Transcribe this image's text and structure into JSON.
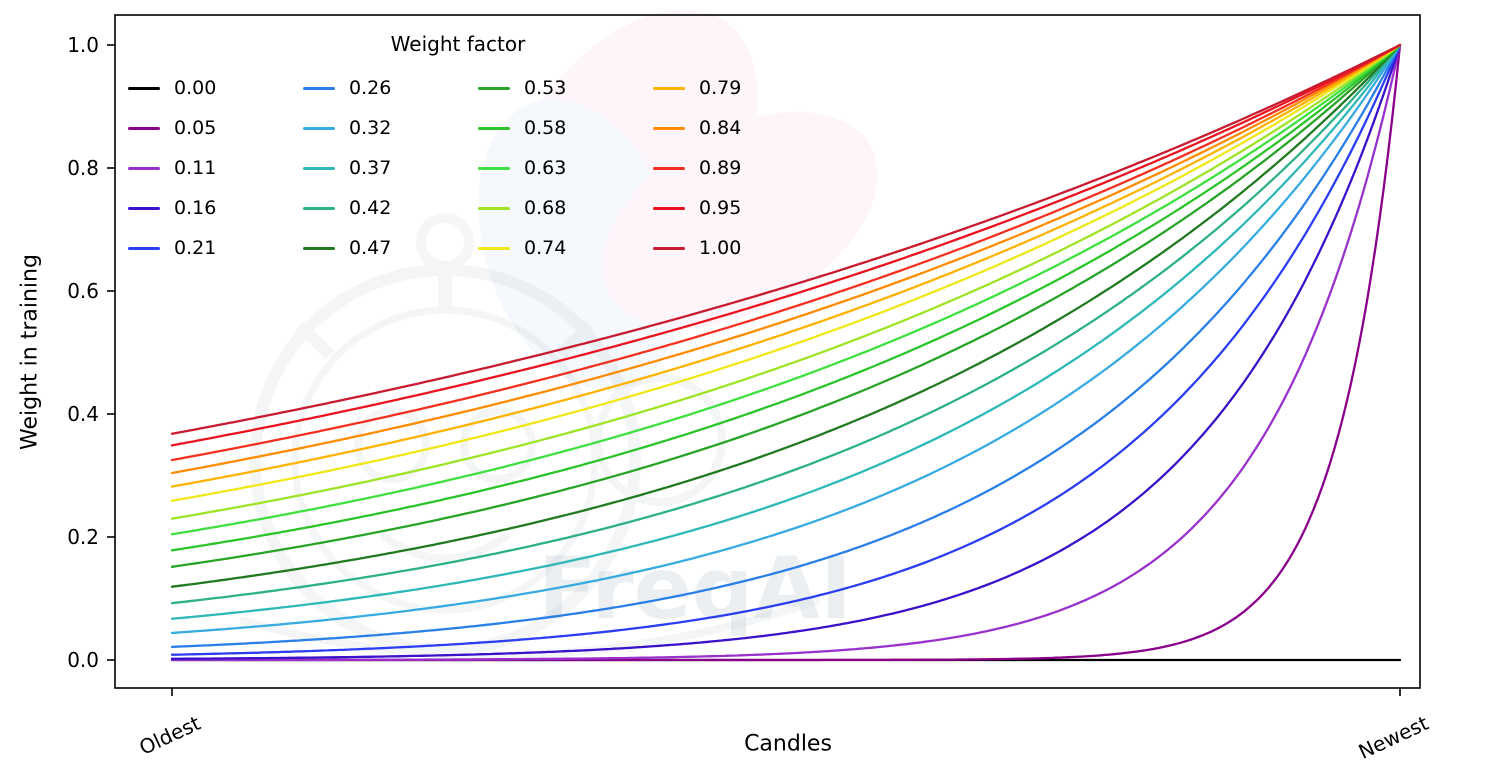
{
  "figure": {
    "background": "#ffffff",
    "watermark_text": "FreqAI"
  },
  "chart_data": {
    "type": "line",
    "title": "",
    "xlabel": "Candles",
    "ylabel": "Weight in training",
    "xlim": [
      0,
      1
    ],
    "ylim": [
      0,
      1
    ],
    "x_tick_labels": [
      "Oldest",
      "Newest"
    ],
    "y_ticks": [
      0,
      0.2,
      0.4,
      0.6,
      0.8,
      1.0
    ],
    "y_tick_labels": [
      "0.0",
      "0.2",
      "0.4",
      "0.6",
      "0.8",
      "1.0"
    ],
    "grid": false,
    "legend": {
      "title": "Weight factor",
      "position": "upper left",
      "columns": 4,
      "rows": 5,
      "frame": false
    },
    "formula": "weight(x) = exp(-(1 - x) / factor) for factor > 0; weight = 0 when factor = 0; x runs from 0 (oldest candle) to 1 (newest candle)",
    "sample_x": [
      0,
      0.25,
      0.5,
      0.75,
      1
    ],
    "series": [
      {
        "label": "0.00",
        "factor": 0.0,
        "color": "#000000",
        "sample_y": [
          0,
          0,
          0,
          0,
          0
        ]
      },
      {
        "label": "0.05",
        "factor": 0.05,
        "color": "#8b008b",
        "sample_y": [
          0.0,
          0.0,
          0.0,
          0.0067,
          1
        ]
      },
      {
        "label": "0.11",
        "factor": 0.11,
        "color": "#9932cc",
        "sample_y": [
          0.0001,
          0.0011,
          0.0106,
          0.1032,
          1
        ]
      },
      {
        "label": "0.16",
        "factor": 0.16,
        "color": "#3a12c9",
        "sample_y": [
          0.0019,
          0.0092,
          0.0439,
          0.2096,
          1
        ]
      },
      {
        "label": "0.21",
        "factor": 0.21,
        "color": "#2c3ef2",
        "sample_y": [
          0.0086,
          0.0281,
          0.0924,
          0.304,
          1
        ]
      },
      {
        "label": "0.26",
        "factor": 0.26,
        "color": "#2a7fe8",
        "sample_y": [
          0.0214,
          0.0559,
          0.146,
          0.3823,
          1
        ]
      },
      {
        "label": "0.32",
        "factor": 0.32,
        "color": "#38abe0",
        "sample_y": [
          0.0439,
          0.096,
          0.2096,
          0.4578,
          1
        ]
      },
      {
        "label": "0.37",
        "factor": 0.37,
        "color": "#2fb8b8",
        "sample_y": [
          0.067,
          0.1317,
          0.2589,
          0.5088,
          1
        ]
      },
      {
        "label": "0.42",
        "factor": 0.42,
        "color": "#2eb089",
        "sample_y": [
          0.0924,
          0.1677,
          0.304,
          0.5514,
          1
        ]
      },
      {
        "label": "0.47",
        "factor": 0.47,
        "color": "#217a21",
        "sample_y": [
          0.1191,
          0.2027,
          0.3452,
          0.5875,
          1
        ]
      },
      {
        "label": "0.53",
        "factor": 0.53,
        "color": "#28a428",
        "sample_y": [
          0.1516,
          0.2429,
          0.3893,
          0.624,
          1
        ]
      },
      {
        "label": "0.58",
        "factor": 0.58,
        "color": "#2bc42b",
        "sample_y": [
          0.1783,
          0.2744,
          0.4223,
          0.6498,
          1
        ]
      },
      {
        "label": "0.63",
        "factor": 0.63,
        "color": "#3fe03f",
        "sample_y": [
          0.2044,
          0.304,
          0.4522,
          0.6725,
          1
        ]
      },
      {
        "label": "0.68",
        "factor": 0.68,
        "color": "#9fe326",
        "sample_y": [
          0.2298,
          0.3319,
          0.4794,
          0.6924,
          1
        ]
      },
      {
        "label": "0.74",
        "factor": 0.74,
        "color": "#f0e718",
        "sample_y": [
          0.2589,
          0.363,
          0.5088,
          0.7133,
          1
        ]
      },
      {
        "label": "0.79",
        "factor": 0.79,
        "color": "#ffb300",
        "sample_y": [
          0.282,
          0.387,
          0.5311,
          0.7287,
          1
        ]
      },
      {
        "label": "0.84",
        "factor": 0.84,
        "color": "#ff8c00",
        "sample_y": [
          0.304,
          0.4095,
          0.5514,
          0.7426,
          1
        ]
      },
      {
        "label": "0.89",
        "factor": 0.89,
        "color": "#f43021",
        "sample_y": [
          0.3251,
          0.4306,
          0.5702,
          0.7551,
          1
        ]
      },
      {
        "label": "0.95",
        "factor": 0.95,
        "color": "#ea1420",
        "sample_y": [
          0.349,
          0.4541,
          0.5908,
          0.7686,
          1
        ]
      },
      {
        "label": "1.00",
        "factor": 1.0,
        "color": "#c81a30",
        "sample_y": [
          0.3679,
          0.4724,
          0.6065,
          0.7788,
          1
        ]
      }
    ]
  }
}
